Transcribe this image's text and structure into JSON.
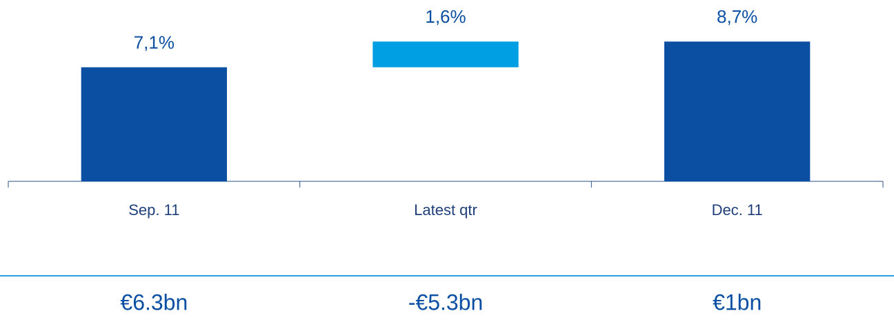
{
  "chart_data": {
    "type": "waterfall",
    "categories": [
      "Sep. 11",
      "Latest qtr",
      "Dec. 11"
    ],
    "measure": [
      "absolute",
      "relative",
      "total"
    ],
    "values": [
      7.1,
      1.6,
      8.7
    ],
    "value_labels": [
      "7,1%",
      "1,6%",
      "8,7%"
    ],
    "colors": [
      "#0b4fa3",
      "#009fe3",
      "#0b4fa3"
    ],
    "ylim": [
      0,
      10
    ],
    "annotations": [
      "€6.3bn",
      "-€5.3bn",
      "€1bn"
    ]
  }
}
